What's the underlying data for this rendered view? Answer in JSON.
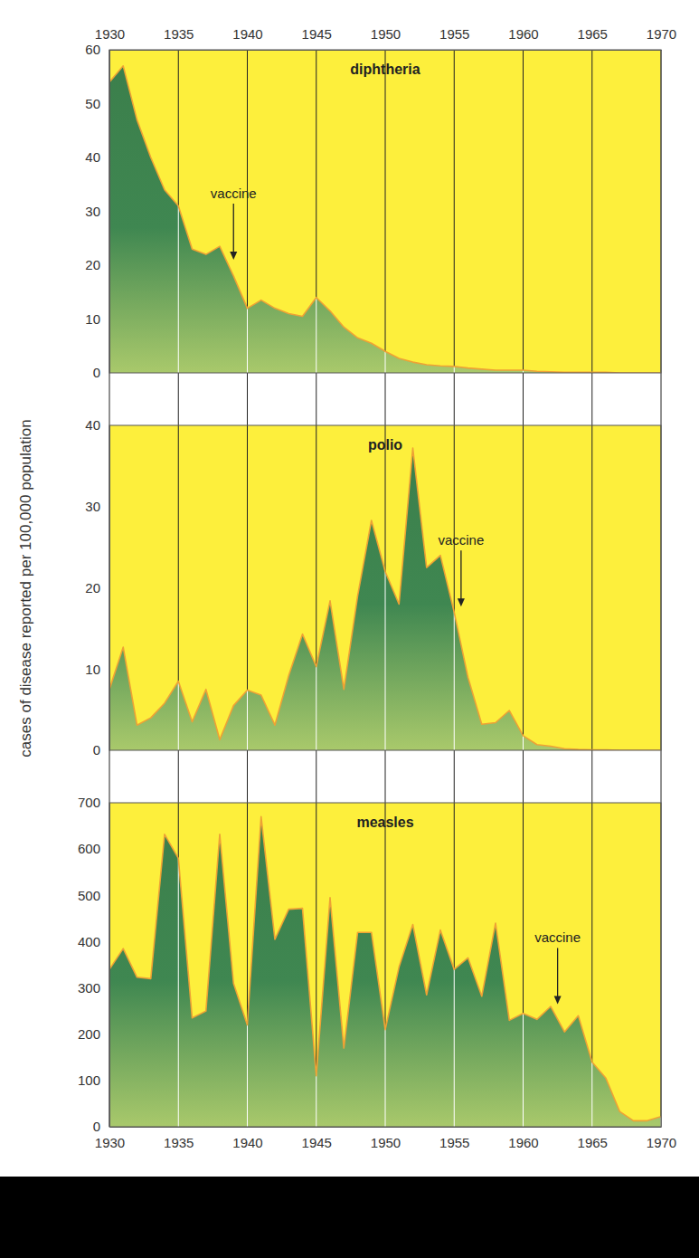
{
  "chart_data": [
    {
      "type": "area",
      "title": "diphtheria",
      "color": "#3f8751",
      "x": [
        1930,
        1931,
        1932,
        1933,
        1934,
        1935,
        1936,
        1937,
        1938,
        1939,
        1940,
        1941,
        1942,
        1943,
        1944,
        1945,
        1946,
        1947,
        1948,
        1949,
        1950,
        1951,
        1952,
        1953,
        1954,
        1955,
        1956,
        1957,
        1958,
        1959,
        1960,
        1961,
        1962,
        1963,
        1964,
        1965,
        1966,
        1967,
        1968,
        1969,
        1970
      ],
      "values": [
        54,
        57,
        47,
        40,
        34,
        31,
        23,
        22,
        23.5,
        18,
        12,
        13.5,
        12,
        11,
        10.5,
        14,
        11.5,
        8.5,
        6.5,
        5.5,
        4,
        2.7,
        2,
        1.5,
        1.3,
        1.2,
        0.9,
        0.7,
        0.5,
        0.5,
        0.5,
        0.3,
        0.2,
        0.1,
        0.1,
        0.1,
        0.1,
        0,
        0,
        0,
        0
      ],
      "xlim": [
        1930,
        1970
      ],
      "xticks": [
        1930,
        1935,
        1940,
        1945,
        1950,
        1955,
        1960,
        1965,
        1970
      ],
      "ylim": [
        0,
        60
      ],
      "yticks": [
        0,
        10,
        20,
        30,
        40,
        50,
        60
      ],
      "grid": true,
      "annotation": {
        "text": "vaccine",
        "x": 1939,
        "y": 21
      }
    },
    {
      "type": "area",
      "title": "polio",
      "color": "#3f8751",
      "ylabel": "cases of disease reported per 100,000 population",
      "x": [
        1930,
        1931,
        1932,
        1933,
        1934,
        1935,
        1936,
        1937,
        1938,
        1939,
        1940,
        1941,
        1942,
        1943,
        1944,
        1945,
        1946,
        1947,
        1948,
        1949,
        1950,
        1951,
        1952,
        1953,
        1954,
        1955,
        1956,
        1957,
        1958,
        1959,
        1960,
        1961,
        1962,
        1963,
        1964,
        1965,
        1966,
        1967,
        1968,
        1969,
        1970
      ],
      "values": [
        7.5,
        12.7,
        3.1,
        4,
        5.8,
        8.5,
        3.5,
        7.5,
        1.3,
        5.5,
        7.4,
        6.8,
        3.1,
        9.2,
        14.3,
        10.3,
        18.4,
        7.5,
        19,
        28.3,
        22,
        18,
        37.2,
        22.5,
        24,
        17,
        9,
        3.2,
        3.4,
        4.9,
        1.8,
        0.7,
        0.5,
        0.2,
        0.1,
        0.05,
        0.05,
        0,
        0,
        0,
        0
      ],
      "xlim": [
        1930,
        1970
      ],
      "xticks": [
        1930,
        1935,
        1940,
        1945,
        1950,
        1955,
        1960,
        1965,
        1970
      ],
      "ylim": [
        0,
        40
      ],
      "yticks": [
        0,
        10,
        20,
        30,
        40
      ],
      "grid": true,
      "tick_labels": "y",
      "annotation": {
        "text": "vaccine",
        "x": 1955.5,
        "y": 17.7
      }
    },
    {
      "type": "area",
      "title": "measles",
      "color": "#3f8751",
      "x": [
        1930,
        1931,
        1932,
        1933,
        1934,
        1935,
        1936,
        1937,
        1938,
        1939,
        1940,
        1941,
        1942,
        1943,
        1944,
        1945,
        1946,
        1947,
        1948,
        1949,
        1950,
        1951,
        1952,
        1953,
        1954,
        1955,
        1956,
        1957,
        1958,
        1959,
        1960,
        1961,
        1962,
        1963,
        1964,
        1965,
        1966,
        1967,
        1968,
        1969,
        1970
      ],
      "values": [
        340,
        385,
        323,
        320,
        632,
        580,
        235,
        250,
        632,
        310,
        220,
        670,
        405,
        470,
        472,
        110,
        495,
        170,
        420,
        420,
        210,
        345,
        437,
        285,
        425,
        340,
        365,
        282,
        440,
        230,
        245,
        232,
        260,
        205,
        240,
        140,
        105,
        33,
        13,
        13,
        22
      ],
      "xlim": [
        1930,
        1970
      ],
      "xticks": [
        1930,
        1935,
        1940,
        1945,
        1950,
        1955,
        1960,
        1965,
        1970
      ],
      "ylim": [
        0,
        700
      ],
      "yticks": [
        0,
        100,
        200,
        300,
        400,
        500,
        600,
        700
      ],
      "grid": true,
      "annotation": {
        "text": "vaccine",
        "x": 1962.5,
        "y": 265
      }
    }
  ]
}
